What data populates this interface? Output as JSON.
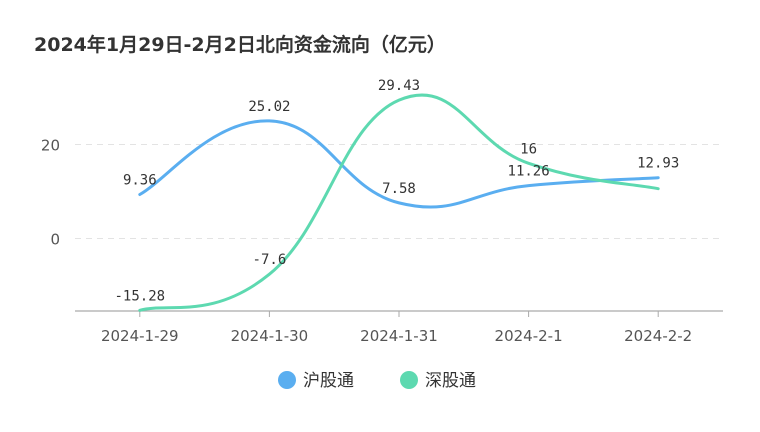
{
  "chart_data": {
    "type": "line",
    "title": "2024年1月29日-2月2日北向资金流向（亿元）",
    "categories": [
      "2024-1-29",
      "2024-1-30",
      "2024-1-31",
      "2024-2-1",
      "2024-2-2"
    ],
    "series": [
      {
        "name": "沪股通",
        "color": "#5aaef0",
        "values": [
          9.36,
          25.02,
          7.58,
          11.26,
          12.93
        ]
      },
      {
        "name": "深股通",
        "color": "#5dd9b0",
        "values": [
          -15.28,
          -7.6,
          29.43,
          16,
          10.6
        ]
      }
    ],
    "data_labels": [
      [
        "9.36",
        "25.02",
        "7.58",
        "11.26",
        "12.93"
      ],
      [
        "-15.28",
        "-7.6",
        "29.43",
        "16",
        ""
      ]
    ],
    "y_ticks": [
      0,
      20
    ],
    "ylim": [
      -15.28,
      32
    ],
    "grid": true,
    "legend_position": "bottom-center"
  }
}
